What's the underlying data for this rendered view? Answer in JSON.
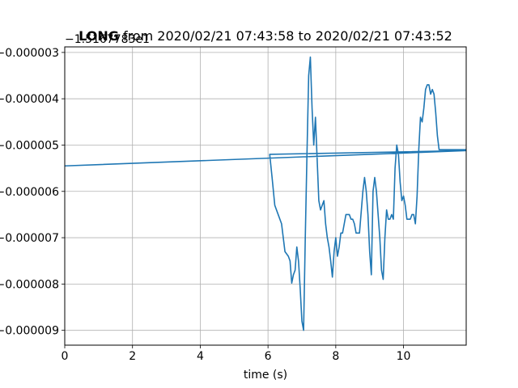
{
  "chart_data": {
    "type": "line",
    "title_bold": "LONG",
    "title_rest": " from 2020/02/21 07:43:58 to 2020/02/21 07:43:52",
    "xlabel": "time (s)",
    "ylabel": "",
    "y_offset_label": "−1.5167783e1",
    "xlim": [
      0,
      11.85
    ],
    "ylim": [
      -9.32e-06,
      -2.88e-06
    ],
    "x_ticks": [
      0,
      2,
      4,
      6,
      8,
      10
    ],
    "x_tick_labels": [
      "0",
      "2",
      "4",
      "6",
      "8",
      "10"
    ],
    "y_ticks": [
      -9e-06,
      -8e-06,
      -7e-06,
      -6e-06,
      -5e-06,
      -4e-06,
      -3e-06
    ],
    "y_tick_labels": [
      "−0.000009",
      "−0.000008",
      "−0.000007",
      "−0.000006",
      "−0.000005",
      "−0.000004",
      "−0.000003"
    ],
    "grid": true,
    "color": "#1f77b4",
    "series": [
      {
        "x": [
          0,
          11.85,
          6.05,
          6.12,
          6.2,
          6.3,
          6.4,
          6.5,
          6.6,
          6.65,
          6.7,
          6.75,
          6.8,
          6.85,
          6.9,
          6.95,
          7.0,
          7.05,
          7.1,
          7.15,
          7.2,
          7.25,
          7.3,
          7.35,
          7.4,
          7.45,
          7.5,
          7.55,
          7.6,
          7.65,
          7.7,
          7.75,
          7.8,
          7.85,
          7.9,
          7.95,
          8.0,
          8.05,
          8.1,
          8.15,
          8.2,
          8.25,
          8.3,
          8.35,
          8.4,
          8.45,
          8.5,
          8.55,
          8.6,
          8.65,
          8.7,
          8.8,
          8.85,
          8.9,
          8.95,
          9.0,
          9.05,
          9.1,
          9.15,
          9.2,
          9.25,
          9.3,
          9.35,
          9.4,
          9.45,
          9.5,
          9.55,
          9.6,
          9.65,
          9.7,
          9.75,
          9.8,
          9.85,
          9.9,
          9.95,
          10.0,
          10.05,
          10.1,
          10.15,
          10.2,
          10.25,
          10.3,
          10.35,
          10.4,
          10.45,
          10.5,
          10.55,
          10.6,
          10.65,
          10.7,
          10.75,
          10.8,
          10.85,
          10.9,
          10.95,
          11.0,
          11.05,
          11.1,
          11.15,
          11.2,
          11.25,
          11.3,
          11.35,
          11.4,
          11.45,
          11.5,
          11.55,
          11.6,
          11.65,
          11.7,
          11.75,
          11.8,
          11.85
        ],
        "y": [
          -5.45e-06,
          -5.12e-06,
          -5.2e-06,
          -5.7e-06,
          -6.3e-06,
          -6.5e-06,
          -6.7e-06,
          -7.3e-06,
          -7.4e-06,
          -7.5e-06,
          -7.98e-06,
          -7.8e-06,
          -7.7e-06,
          -7.2e-06,
          -7.5e-06,
          -8.1e-06,
          -8.8e-06,
          -9e-06,
          -7e-06,
          -5.2e-06,
          -3.5e-06,
          -3.1e-06,
          -4.2e-06,
          -5e-06,
          -4.4e-06,
          -5.3e-06,
          -6.2e-06,
          -6.4e-06,
          -6.3e-06,
          -6.2e-06,
          -6.7e-06,
          -7e-06,
          -7.2e-06,
          -7.5e-06,
          -7.85e-06,
          -7.3e-06,
          -7e-06,
          -7.4e-06,
          -7.2e-06,
          -6.9e-06,
          -6.9e-06,
          -6.7e-06,
          -6.5e-06,
          -6.5e-06,
          -6.5e-06,
          -6.6e-06,
          -6.6e-06,
          -6.7e-06,
          -6.9e-06,
          -6.9e-06,
          -6.9e-06,
          -6e-06,
          -5.7e-06,
          -6e-06,
          -6.5e-06,
          -7.3e-06,
          -7.8e-06,
          -6e-06,
          -5.7e-06,
          -6e-06,
          -6.5e-06,
          -7e-06,
          -7.7e-06,
          -7.9e-06,
          -7e-06,
          -6.4e-06,
          -6.6e-06,
          -6.6e-06,
          -6.5e-06,
          -6.6e-06,
          -5.5e-06,
          -5e-06,
          -5.2e-06,
          -5.8e-06,
          -6.2e-06,
          -6.1e-06,
          -6.3e-06,
          -6.6e-06,
          -6.6e-06,
          -6.6e-06,
          -6.5e-06,
          -6.5e-06,
          -6.7e-06,
          -6.1e-06,
          -5.1e-06,
          -4.4e-06,
          -4.5e-06,
          -4.2e-06,
          -3.8e-06,
          -3.7e-06,
          -3.7e-06,
          -3.9e-06,
          -3.8e-06,
          -3.9e-06,
          -4.3e-06,
          -4.8e-06,
          -5.1e-06,
          -5.1e-06,
          -5.1e-06,
          -5.1e-06,
          -5.1e-06,
          -5.1e-06,
          -5.1e-06,
          -5.1e-06,
          -5.1e-06,
          -5.1e-06,
          -5.1e-06,
          -5.1e-06,
          -5.1e-06,
          -5.1e-06,
          -5.1e-06,
          -5.1e-06,
          -5.1e-06
        ]
      }
    ]
  }
}
